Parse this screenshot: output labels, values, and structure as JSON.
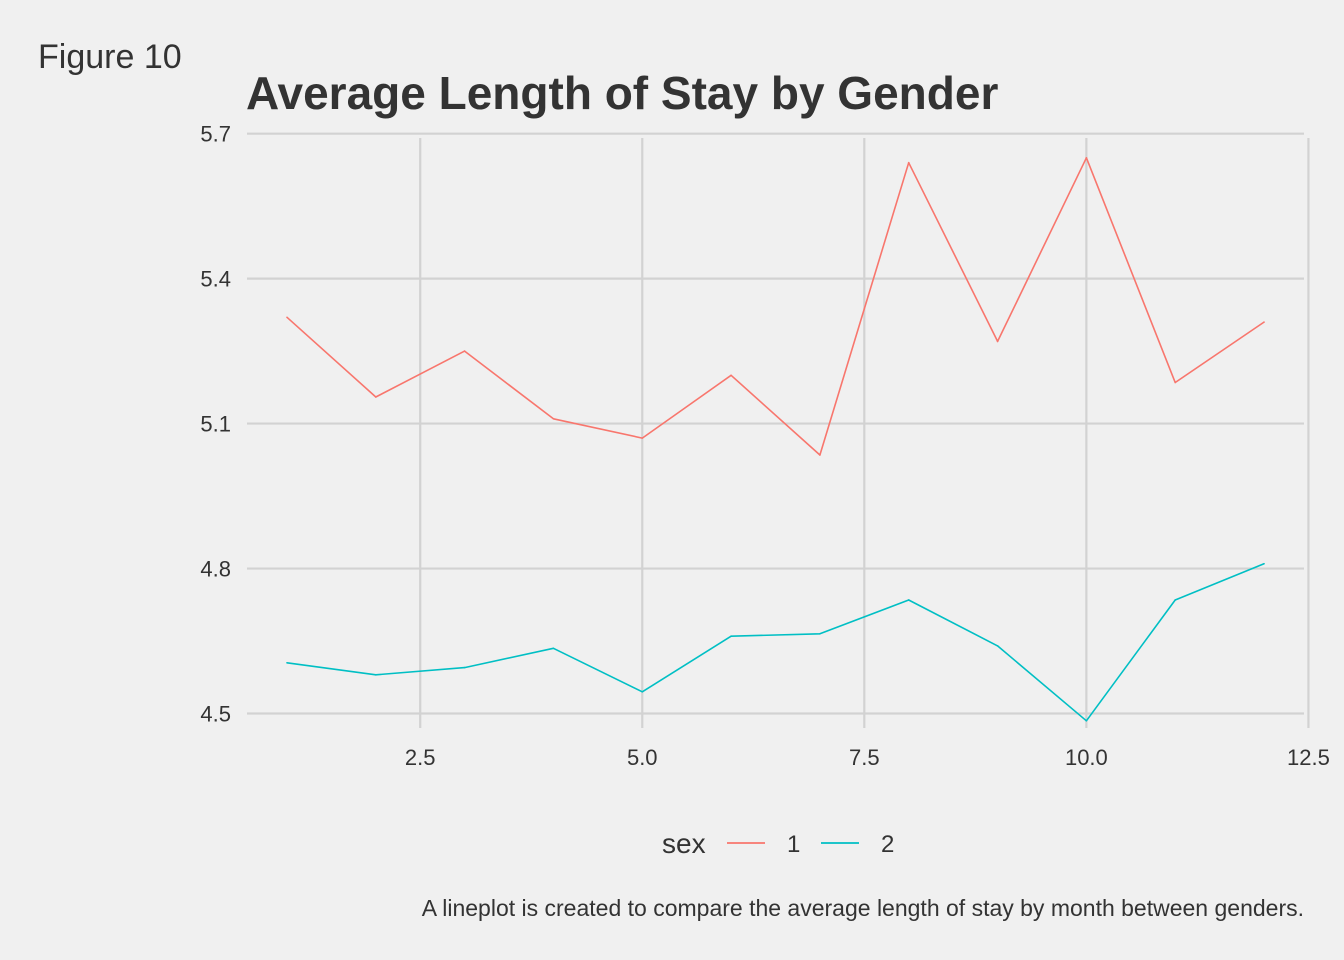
{
  "figure_label": "Figure 10",
  "chart_data": {
    "type": "line",
    "title": "Average Length of Stay by Gender",
    "xlabel": "",
    "ylabel": "",
    "xlim": [
      0.55,
      12.45
    ],
    "ylim": [
      4.47,
      5.72
    ],
    "x_ticks": [
      2.5,
      5.0,
      7.5,
      10.0,
      12.5
    ],
    "x_tick_labels": [
      "2.5",
      "5.0",
      "7.5",
      "10.0",
      "12.5"
    ],
    "y_ticks": [
      4.5,
      4.8,
      5.1,
      5.4,
      5.7
    ],
    "y_tick_labels": [
      "4.5",
      "4.8",
      "5.1",
      "5.4",
      "5.7"
    ],
    "grid": true,
    "legend": {
      "title": "sex",
      "position": "bottom"
    },
    "x": [
      1,
      2,
      3,
      4,
      5,
      6,
      7,
      8,
      9,
      10,
      11,
      12
    ],
    "series": [
      {
        "name": "1",
        "color": "#f8766d",
        "values": [
          5.32,
          5.155,
          5.25,
          5.11,
          5.07,
          5.2,
          5.035,
          5.64,
          5.27,
          5.65,
          5.185,
          5.31
        ]
      },
      {
        "name": "2",
        "color": "#00bfc4",
        "values": [
          4.605,
          4.58,
          4.595,
          4.635,
          4.545,
          4.66,
          4.665,
          4.735,
          4.64,
          4.485,
          4.735,
          4.81
        ]
      }
    ]
  },
  "caption": "A lineplot is created to compare the average length of stay by month between genders."
}
